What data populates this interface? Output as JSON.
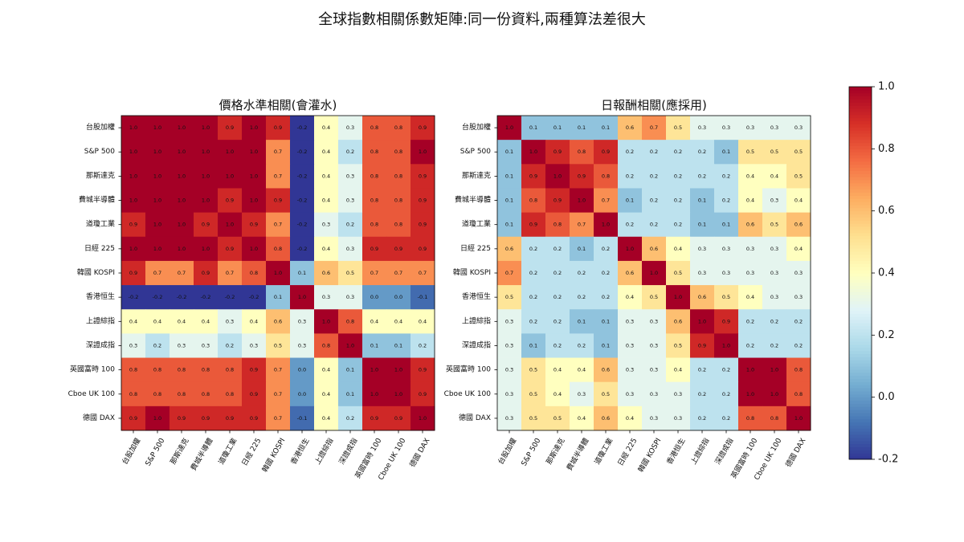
{
  "figure": {
    "suptitle": "全球指數相關係數矩陣:同一份資料,兩種算法差很大"
  },
  "colormap": {
    "name": "RdYlBu_r",
    "stops": [
      "#313695",
      "#4575b4",
      "#74add1",
      "#abd9e9",
      "#e0f3f8",
      "#ffffbf",
      "#fee090",
      "#fdae61",
      "#f46d43",
      "#d73027",
      "#a50026"
    ]
  },
  "colorbar": {
    "range": [
      -0.2,
      1.0
    ],
    "ticks": [
      -0.2,
      0.0,
      0.2,
      0.4,
      0.6,
      0.8,
      1.0
    ],
    "tick_labels": [
      "-0.2",
      "0.0",
      "0.2",
      "0.4",
      "0.6",
      "0.8",
      "1.0"
    ]
  },
  "chart_data": [
    {
      "type": "heatmap",
      "title": "價格水準相關(會灌水)",
      "labels": [
        "台股加權",
        "S&P 500",
        "那斯達克",
        "費城半導體",
        "道瓊工業",
        "日經 225",
        "韓國 KOSPI",
        "香港恒生",
        "上證綜指",
        "深證成指",
        "英國富時 100",
        "Cboe UK 100",
        "德國 DAX"
      ],
      "vmin": -0.2,
      "vmax": 1.0,
      "values": [
        [
          1.0,
          1.0,
          1.0,
          1.0,
          0.9,
          1.0,
          0.9,
          -0.2,
          0.4,
          0.3,
          0.8,
          0.8,
          0.9
        ],
        [
          1.0,
          1.0,
          1.0,
          1.0,
          1.0,
          1.0,
          0.7,
          -0.2,
          0.4,
          0.2,
          0.8,
          0.8,
          1.0
        ],
        [
          1.0,
          1.0,
          1.0,
          1.0,
          1.0,
          1.0,
          0.7,
          -0.2,
          0.4,
          0.3,
          0.8,
          0.8,
          0.9
        ],
        [
          1.0,
          1.0,
          1.0,
          1.0,
          0.9,
          1.0,
          0.9,
          -0.2,
          0.4,
          0.3,
          0.8,
          0.8,
          0.9
        ],
        [
          0.9,
          1.0,
          1.0,
          0.9,
          1.0,
          0.9,
          0.7,
          -0.2,
          0.3,
          0.2,
          0.8,
          0.8,
          0.9
        ],
        [
          1.0,
          1.0,
          1.0,
          1.0,
          0.9,
          1.0,
          0.8,
          -0.2,
          0.4,
          0.3,
          0.9,
          0.9,
          0.9
        ],
        [
          0.9,
          0.7,
          0.7,
          0.9,
          0.7,
          0.8,
          1.0,
          0.1,
          0.6,
          0.5,
          0.7,
          0.7,
          0.7
        ],
        [
          -0.2,
          -0.2,
          -0.2,
          -0.2,
          -0.2,
          -0.2,
          0.1,
          1.0,
          0.3,
          0.3,
          0.0,
          0.0,
          -0.1
        ],
        [
          0.4,
          0.4,
          0.4,
          0.4,
          0.3,
          0.4,
          0.6,
          0.3,
          1.0,
          0.8,
          0.4,
          0.4,
          0.4
        ],
        [
          0.3,
          0.2,
          0.3,
          0.3,
          0.2,
          0.3,
          0.5,
          0.3,
          0.8,
          1.0,
          0.1,
          0.1,
          0.2
        ],
        [
          0.8,
          0.8,
          0.8,
          0.8,
          0.8,
          0.9,
          0.7,
          0.0,
          0.4,
          0.1,
          1.0,
          1.0,
          0.9
        ],
        [
          0.8,
          0.8,
          0.8,
          0.8,
          0.8,
          0.9,
          0.7,
          0.0,
          0.4,
          0.1,
          1.0,
          1.0,
          0.9
        ],
        [
          0.9,
          1.0,
          0.9,
          0.9,
          0.9,
          0.9,
          0.7,
          -0.1,
          0.4,
          0.2,
          0.9,
          0.9,
          1.0
        ]
      ]
    },
    {
      "type": "heatmap",
      "title": "日報酬相關(應採用)",
      "labels": [
        "台股加權",
        "S&P 500",
        "那斯達克",
        "費城半導體",
        "道瓊工業",
        "日經 225",
        "韓國 KOSPI",
        "香港恒生",
        "上證綜指",
        "深證成指",
        "英國富時 100",
        "Cboe UK 100",
        "德國 DAX"
      ],
      "vmin": -0.2,
      "vmax": 1.0,
      "values": [
        [
          1.0,
          0.1,
          0.1,
          0.1,
          0.1,
          0.6,
          0.7,
          0.5,
          0.3,
          0.3,
          0.3,
          0.3,
          0.3
        ],
        [
          0.1,
          1.0,
          0.9,
          0.8,
          0.9,
          0.2,
          0.2,
          0.2,
          0.2,
          0.1,
          0.5,
          0.5,
          0.5
        ],
        [
          0.1,
          0.9,
          1.0,
          0.9,
          0.8,
          0.2,
          0.2,
          0.2,
          0.2,
          0.2,
          0.4,
          0.4,
          0.5
        ],
        [
          0.1,
          0.8,
          0.9,
          1.0,
          0.7,
          0.1,
          0.2,
          0.2,
          0.1,
          0.2,
          0.4,
          0.3,
          0.4
        ],
        [
          0.1,
          0.9,
          0.8,
          0.7,
          1.0,
          0.2,
          0.2,
          0.2,
          0.1,
          0.1,
          0.6,
          0.5,
          0.6
        ],
        [
          0.6,
          0.2,
          0.2,
          0.1,
          0.2,
          1.0,
          0.6,
          0.4,
          0.3,
          0.3,
          0.3,
          0.3,
          0.4
        ],
        [
          0.7,
          0.2,
          0.2,
          0.2,
          0.2,
          0.6,
          1.0,
          0.5,
          0.3,
          0.3,
          0.3,
          0.3,
          0.3
        ],
        [
          0.5,
          0.2,
          0.2,
          0.2,
          0.2,
          0.4,
          0.5,
          1.0,
          0.6,
          0.5,
          0.4,
          0.3,
          0.3
        ],
        [
          0.3,
          0.2,
          0.2,
          0.1,
          0.1,
          0.3,
          0.3,
          0.6,
          1.0,
          0.9,
          0.2,
          0.2,
          0.2
        ],
        [
          0.3,
          0.1,
          0.2,
          0.2,
          0.1,
          0.3,
          0.3,
          0.5,
          0.9,
          1.0,
          0.2,
          0.2,
          0.2
        ],
        [
          0.3,
          0.5,
          0.4,
          0.4,
          0.6,
          0.3,
          0.3,
          0.4,
          0.2,
          0.2,
          1.0,
          1.0,
          0.8
        ],
        [
          0.3,
          0.5,
          0.4,
          0.3,
          0.5,
          0.3,
          0.3,
          0.3,
          0.2,
          0.2,
          1.0,
          1.0,
          0.8
        ],
        [
          0.3,
          0.5,
          0.5,
          0.4,
          0.6,
          0.4,
          0.3,
          0.3,
          0.2,
          0.2,
          0.8,
          0.8,
          1.0
        ]
      ]
    }
  ]
}
